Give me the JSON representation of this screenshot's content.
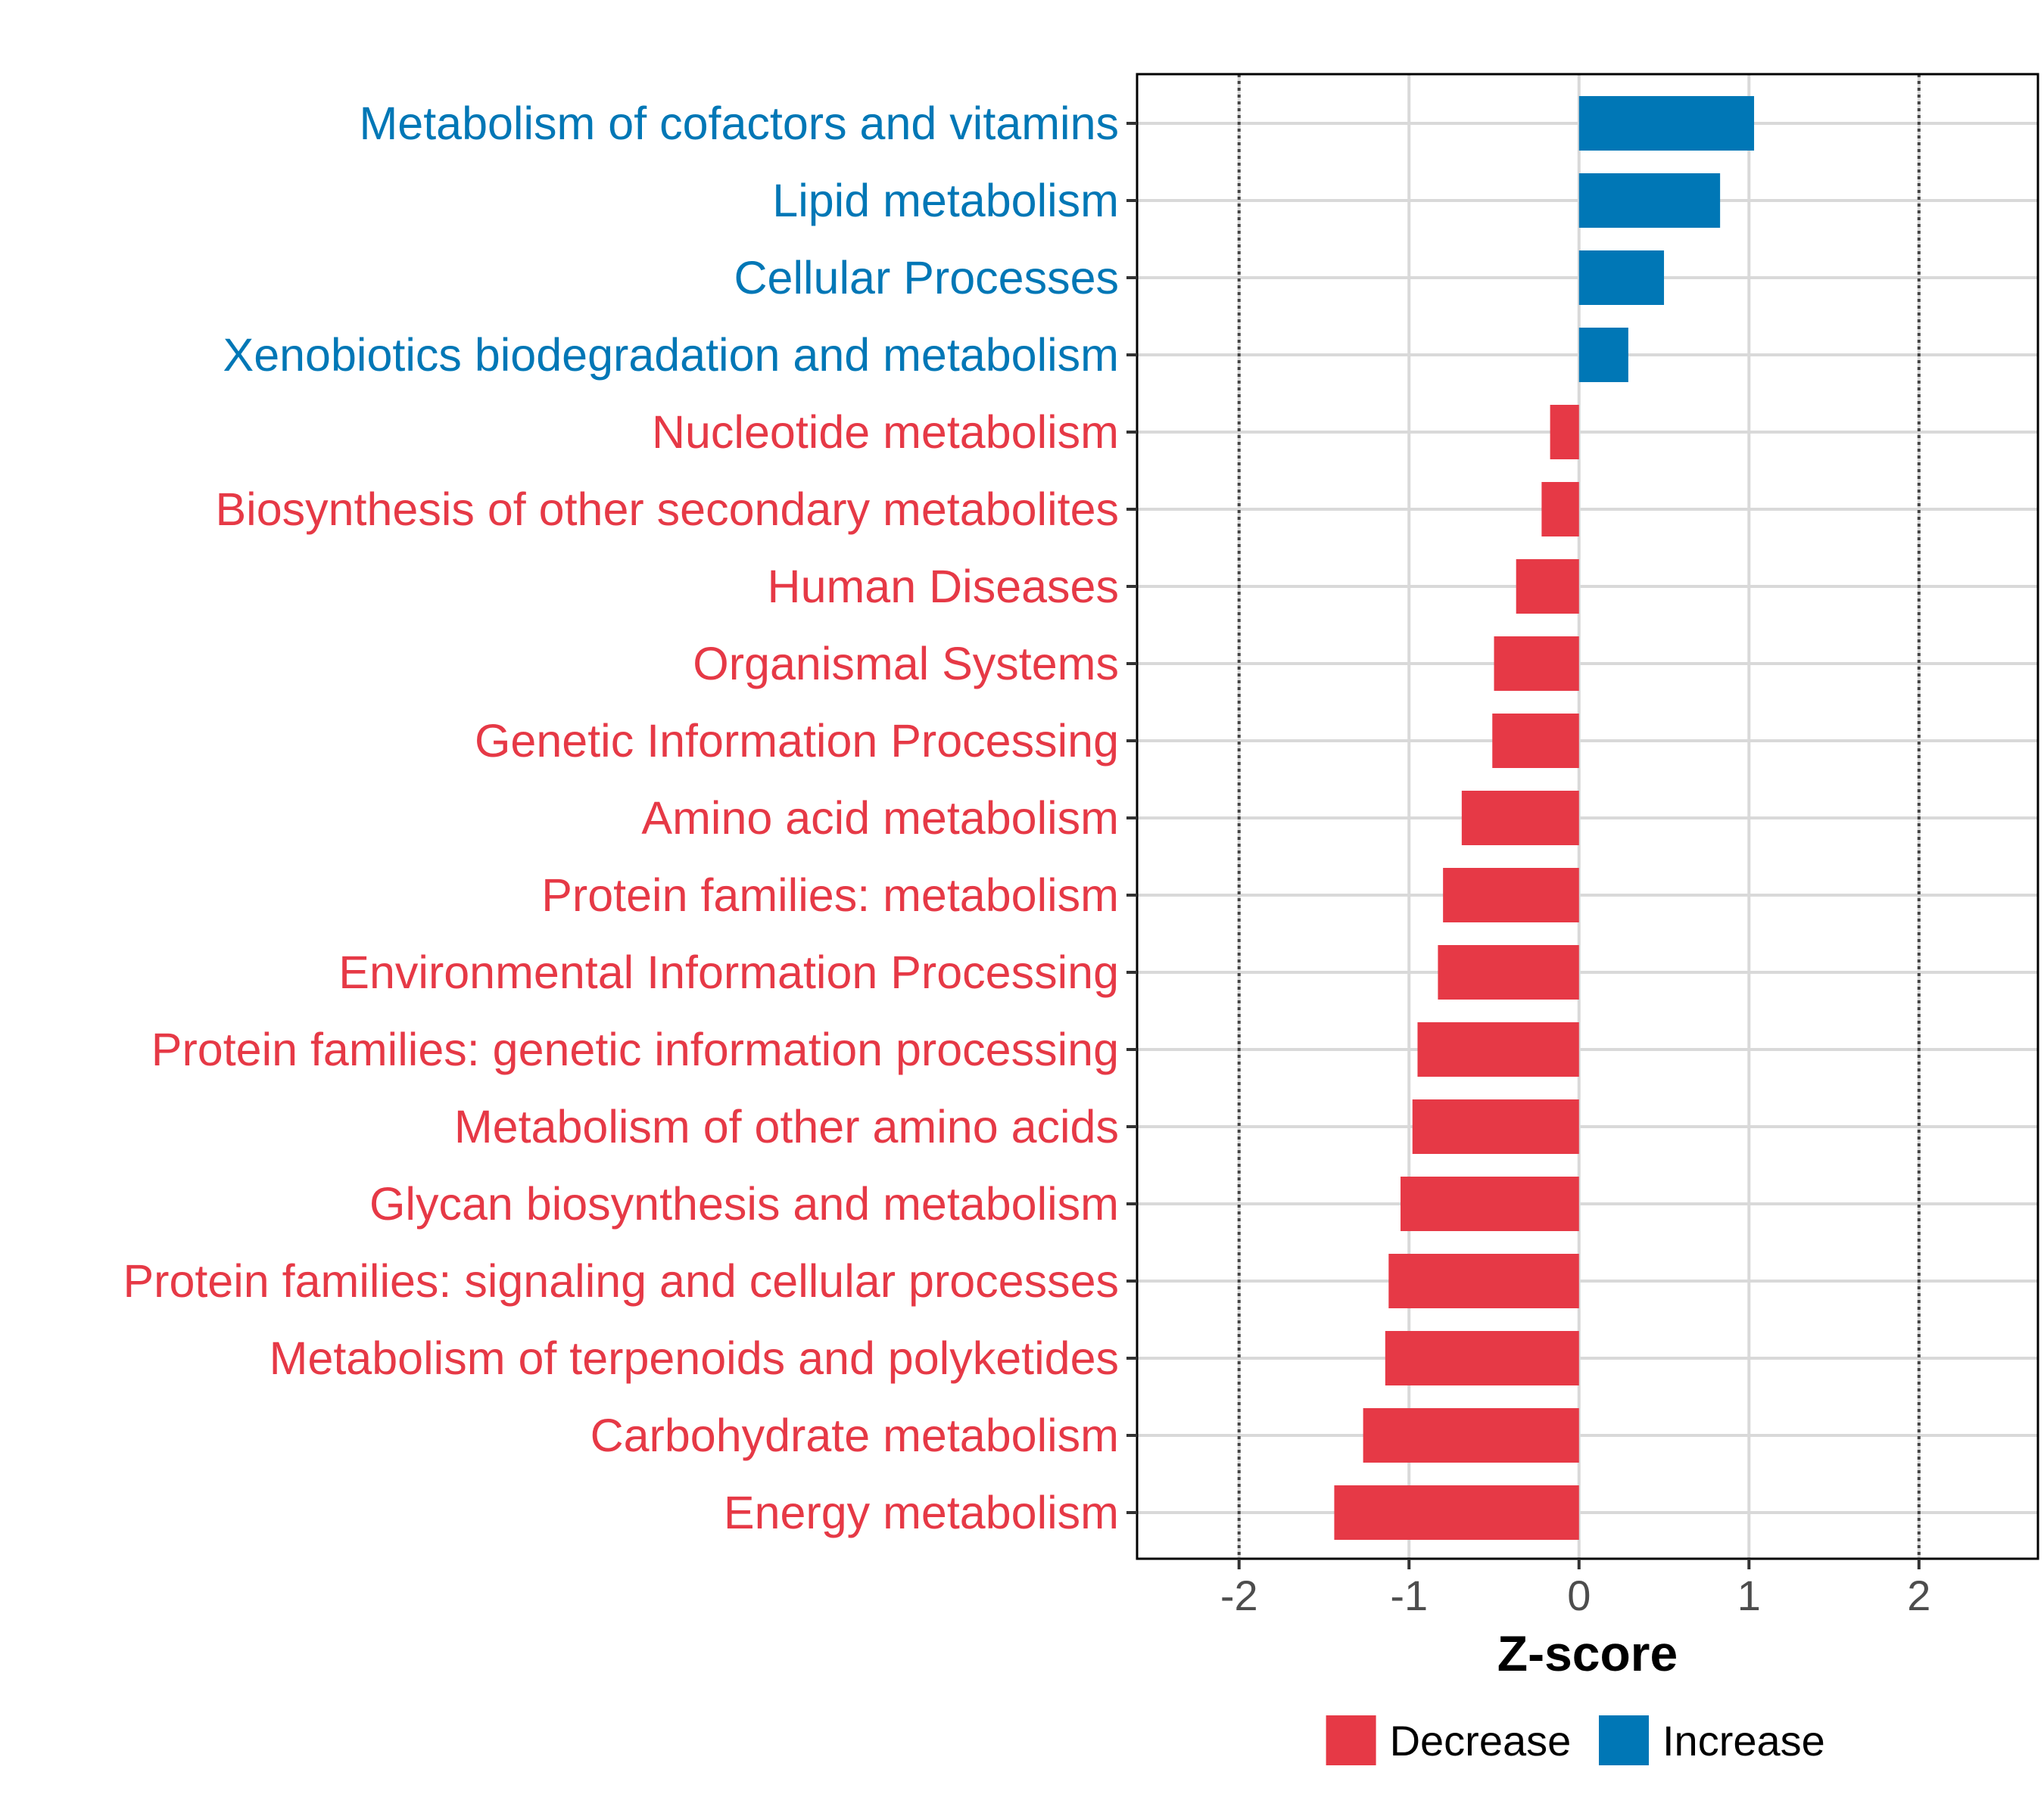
{
  "chart_data": {
    "type": "bar",
    "orientation": "horizontal",
    "title": "",
    "xlabel": "Z-score",
    "ylabel": "",
    "xlim": [
      -2.6,
      2.7
    ],
    "xticks": [
      "-2",
      "-1",
      "0",
      "1",
      "2"
    ],
    "xtick_values": [
      -2,
      -1,
      0,
      1,
      2
    ],
    "reference_lines": [
      -2,
      2
    ],
    "grid": true,
    "legend_position": "bottom",
    "colors": {
      "Decrease": "#E63946",
      "Increase": "#0077B6"
    },
    "legend": [
      {
        "label": "Decrease",
        "group": "Decrease"
      },
      {
        "label": "Increase",
        "group": "Increase"
      }
    ],
    "bars": [
      {
        "category": "Metabolism of cofactors and vitamins",
        "value": 1.03,
        "group": "Increase"
      },
      {
        "category": "Lipid metabolism",
        "value": 0.83,
        "group": "Increase"
      },
      {
        "category": "Cellular Processes",
        "value": 0.5,
        "group": "Increase"
      },
      {
        "category": "Xenobiotics biodegradation and metabolism",
        "value": 0.29,
        "group": "Increase"
      },
      {
        "category": "Nucleotide metabolism",
        "value": -0.17,
        "group": "Decrease"
      },
      {
        "category": "Biosynthesis of other secondary metabolites",
        "value": -0.22,
        "group": "Decrease"
      },
      {
        "category": "Human Diseases",
        "value": -0.37,
        "group": "Decrease"
      },
      {
        "category": "Organismal Systems",
        "value": -0.5,
        "group": "Decrease"
      },
      {
        "category": "Genetic Information Processing",
        "value": -0.51,
        "group": "Decrease"
      },
      {
        "category": "Amino acid metabolism",
        "value": -0.69,
        "group": "Decrease"
      },
      {
        "category": "Protein families: metabolism",
        "value": -0.8,
        "group": "Decrease"
      },
      {
        "category": "Environmental Information Processing",
        "value": -0.83,
        "group": "Decrease"
      },
      {
        "category": "Protein families: genetic information processing",
        "value": -0.95,
        "group": "Decrease"
      },
      {
        "category": "Metabolism of other amino acids",
        "value": -0.98,
        "group": "Decrease"
      },
      {
        "category": "Glycan biosynthesis and metabolism",
        "value": -1.05,
        "group": "Decrease"
      },
      {
        "category": "Protein families: signaling and cellular processes",
        "value": -1.12,
        "group": "Decrease"
      },
      {
        "category": "Metabolism of terpenoids and polyketides",
        "value": -1.14,
        "group": "Decrease"
      },
      {
        "category": "Carbohydrate metabolism",
        "value": -1.27,
        "group": "Decrease"
      },
      {
        "category": "Energy metabolism",
        "value": -1.44,
        "group": "Decrease"
      }
    ]
  }
}
